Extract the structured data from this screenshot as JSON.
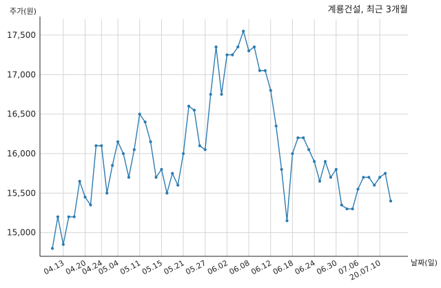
{
  "chart_data": {
    "type": "line",
    "title": "계룡건설, 최근 3개월",
    "xlabel": "날짜(일)",
    "ylabel": "주가(원)",
    "ylim": [
      14700,
      17700
    ],
    "grid": true,
    "yticks": [
      {
        "value": 15000,
        "label": "15,000"
      },
      {
        "value": 15500,
        "label": "15,500"
      },
      {
        "value": 16000,
        "label": "16,000"
      },
      {
        "value": 16500,
        "label": "16,500"
      },
      {
        "value": 17000,
        "label": "17,000"
      },
      {
        "value": 17500,
        "label": "17,500"
      }
    ],
    "xticks": [
      {
        "index": 2,
        "label": "04.13"
      },
      {
        "index": 6,
        "label": "04.20"
      },
      {
        "index": 9,
        "label": "04.24"
      },
      {
        "index": 12,
        "label": "05.04"
      },
      {
        "index": 16,
        "label": "05.11"
      },
      {
        "index": 20,
        "label": "05.15"
      },
      {
        "index": 24,
        "label": "05.21"
      },
      {
        "index": 28,
        "label": "05.27"
      },
      {
        "index": 32,
        "label": "06.02"
      },
      {
        "index": 36,
        "label": "06.08"
      },
      {
        "index": 40,
        "label": "06.12"
      },
      {
        "index": 44,
        "label": "06.18"
      },
      {
        "index": 48,
        "label": "06.24"
      },
      {
        "index": 52,
        "label": "06.30"
      },
      {
        "index": 56,
        "label": "07.06"
      },
      {
        "index": 60,
        "label": "20.07.10"
      }
    ],
    "series": [
      {
        "color": "#2b7bb1",
        "values": [
          14800,
          15200,
          14850,
          15200,
          15200,
          15650,
          15450,
          15350,
          16100,
          16100,
          15500,
          15850,
          16150,
          16000,
          15700,
          16050,
          16500,
          16400,
          16150,
          15700,
          15800,
          15500,
          15750,
          15600,
          16000,
          16600,
          16550,
          16100,
          16050,
          16750,
          17350,
          16750,
          17250,
          17250,
          17350,
          17550,
          17300,
          17350,
          17050,
          17050,
          16800,
          16350,
          15800,
          15150,
          16000,
          16200,
          16200,
          16050,
          15900,
          15650,
          15900,
          15700,
          15800,
          15350,
          15300,
          15300,
          15550,
          15700,
          15700,
          15600,
          15700,
          15750,
          15400
        ]
      }
    ]
  }
}
